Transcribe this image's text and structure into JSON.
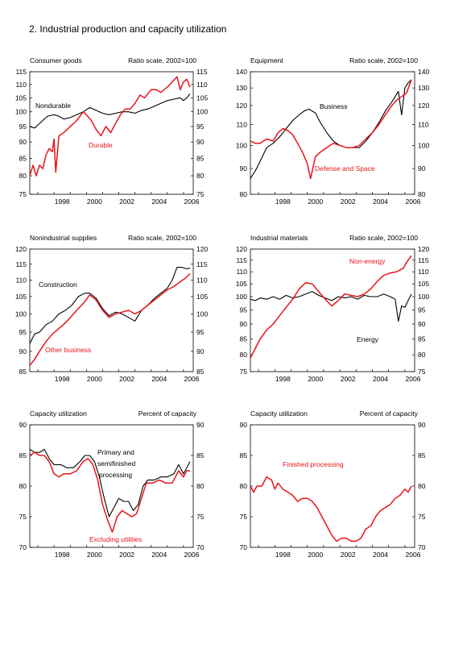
{
  "page": {
    "title": "2.  Industrial production and capacity utilization"
  },
  "colors": {
    "black": "#000000",
    "red": "#e8141b"
  },
  "chart_data": [
    {
      "type": "line",
      "title": "Consumer goods",
      "unit_label": "Ratio scale, 2002=100",
      "scale": "log",
      "ylim": [
        75,
        115
      ],
      "yticks": [
        "75",
        "80",
        "85",
        "90",
        "95",
        "100",
        "105",
        "110",
        "115"
      ],
      "xlim": [
        1996.5,
        2006.6
      ],
      "xticks": [
        "1998",
        "2000",
        "2002",
        "2004",
        "2006"
      ],
      "grid": false,
      "series": [
        {
          "name": "Nondurable",
          "color": "black",
          "x": [
            1996.5,
            1996.8,
            1997.0,
            1997.3,
            1997.6,
            1998.0,
            1998.3,
            1998.6,
            1999.0,
            1999.4,
            1999.8,
            2000.2,
            2000.6,
            2001.0,
            2001.4,
            2001.8,
            2002.2,
            2002.6,
            2003.0,
            2003.4,
            2003.8,
            2004.2,
            2004.6,
            2005.0,
            2005.4,
            2005.8,
            2006.0,
            2006.2,
            2006.4
          ],
          "y": [
            95,
            94.5,
            95.5,
            97,
            98.5,
            99,
            98.5,
            97.5,
            98,
            99,
            100,
            101.5,
            100.5,
            99.5,
            99,
            99.5,
            100,
            100,
            99.5,
            100.5,
            101,
            102,
            103,
            104,
            104.5,
            105,
            104,
            105,
            106.5
          ]
        },
        {
          "name": "Durable",
          "color": "red",
          "x": [
            1996.5,
            1996.7,
            1996.9,
            1997.1,
            1997.3,
            1997.5,
            1997.7,
            1997.9,
            1998.0,
            1998.1,
            1998.3,
            1998.6,
            1999.0,
            1999.4,
            1999.8,
            2000.0,
            2000.3,
            2000.6,
            2000.9,
            2001.2,
            2001.5,
            2001.8,
            2002.1,
            2002.4,
            2002.7,
            2003.0,
            2003.3,
            2003.6,
            2004.0,
            2004.3,
            2004.6,
            2005.0,
            2005.3,
            2005.6,
            2005.8,
            2006.0,
            2006.2,
            2006.4
          ],
          "y": [
            80,
            83,
            80,
            83,
            82,
            86,
            88,
            87,
            91,
            81,
            92,
            93,
            95,
            97,
            100,
            99,
            97,
            94,
            92,
            95,
            93,
            96,
            99,
            101,
            101,
            103,
            106,
            105,
            108,
            108,
            107,
            109,
            111,
            113,
            108,
            111,
            112,
            109
          ]
        }
      ],
      "annotations": [
        {
          "text": "Nondurable"
        },
        {
          "text": "Durable"
        }
      ]
    },
    {
      "type": "line",
      "title": "Equipment",
      "unit_label": "Ratio scale, 2002=100",
      "scale": "log",
      "ylim": [
        80,
        140
      ],
      "yticks": [
        "80",
        "90",
        "100",
        "110",
        "120",
        "130",
        "140"
      ],
      "xlim": [
        1996.5,
        2006.6
      ],
      "xticks": [
        "1998",
        "2000",
        "2002",
        "2004",
        "2006"
      ],
      "grid": false,
      "series": [
        {
          "name": "Business",
          "color": "black",
          "x": [
            1996.5,
            1996.8,
            1997.1,
            1997.5,
            1997.9,
            1998.3,
            1998.7,
            1999.1,
            1999.5,
            1999.8,
            2000.1,
            2000.5,
            2000.8,
            2001.2,
            2001.6,
            2002.0,
            2002.4,
            2002.8,
            2003.2,
            2003.6,
            2004.0,
            2004.4,
            2004.8,
            2005.2,
            2005.6,
            2005.8,
            2006.0,
            2006.2,
            2006.4
          ],
          "y": [
            86,
            89,
            93,
            99,
            101,
            104,
            108,
            112,
            115,
            117,
            118,
            116,
            111,
            106,
            102,
            100,
            99,
            99,
            99,
            102,
            106,
            111,
            117,
            122,
            128,
            115,
            130,
            133,
            135
          ]
        },
        {
          "name": "Defense and Space",
          "color": "red",
          "x": [
            1996.5,
            1996.8,
            1997.1,
            1997.5,
            1997.9,
            1998.2,
            1998.5,
            1998.8,
            1999.1,
            1999.4,
            1999.7,
            2000.0,
            2000.2,
            2000.5,
            2000.8,
            2001.2,
            2001.6,
            2002.0,
            2002.4,
            2002.8,
            2003.2,
            2003.6,
            2004.0,
            2004.4,
            2004.8,
            2005.2,
            2005.5,
            2005.8,
            2006.1,
            2006.4
          ],
          "y": [
            102,
            101,
            101,
            103,
            102,
            106,
            108,
            107,
            105,
            101,
            97,
            92,
            86,
            95,
            97,
            99,
            101,
            100,
            99,
            99,
            100,
            103,
            106,
            110,
            115,
            120,
            123,
            125,
            127,
            135
          ]
        }
      ],
      "annotations": [
        {
          "text": "Business"
        },
        {
          "text": "Defense and Space"
        }
      ]
    },
    {
      "type": "line",
      "title": "Nonindustrial supplies",
      "unit_label": "Ratio scale, 2002=100",
      "scale": "log",
      "ylim": [
        85,
        120
      ],
      "yticks": [
        "85",
        "90",
        "95",
        "100",
        "105",
        "110",
        "115",
        "120"
      ],
      "xlim": [
        1996.5,
        2006.6
      ],
      "xticks": [
        "1998",
        "2000",
        "2002",
        "2004",
        "2006"
      ],
      "grid": false,
      "series": [
        {
          "name": "Construction",
          "color": "black",
          "x": [
            1996.5,
            1996.8,
            1997.1,
            1997.5,
            1997.9,
            1998.3,
            1998.7,
            1999.1,
            1999.5,
            1999.9,
            2000.2,
            2000.6,
            2001.0,
            2001.4,
            2001.8,
            2002.2,
            2002.6,
            2003.0,
            2003.4,
            2003.8,
            2004.2,
            2004.6,
            2005.0,
            2005.3,
            2005.6,
            2005.9,
            2006.2,
            2006.4
          ],
          "y": [
            92,
            94.5,
            95,
            97,
            98,
            100,
            101,
            102.5,
            105,
            106,
            106,
            104.5,
            101.5,
            99.5,
            100.5,
            100,
            99,
            98,
            101,
            102.5,
            104.5,
            106,
            107.5,
            110,
            114,
            114,
            113.5,
            113.8
          ]
        },
        {
          "name": "Other business",
          "color": "red",
          "x": [
            1996.5,
            1996.8,
            1997.1,
            1997.5,
            1997.9,
            1998.3,
            1998.7,
            1999.1,
            1999.5,
            1999.9,
            2000.2,
            2000.6,
            2001.0,
            2001.4,
            2001.8,
            2002.2,
            2002.6,
            2003.0,
            2003.4,
            2003.8,
            2004.2,
            2004.6,
            2005.0,
            2005.4,
            2005.8,
            2006.1,
            2006.4
          ],
          "y": [
            86.5,
            88,
            90,
            92.5,
            94.5,
            96,
            97.5,
            99.5,
            101.5,
            103.5,
            105.5,
            104,
            101,
            99,
            100,
            100.5,
            101,
            100,
            101,
            102.5,
            104,
            105.5,
            107,
            108,
            109.5,
            110.5,
            112
          ]
        }
      ],
      "annotations": [
        {
          "text": "Construction"
        },
        {
          "text": "Other business"
        }
      ]
    },
    {
      "type": "line",
      "title": "Industrial materials",
      "unit_label": "Ratio scale, 2002=100",
      "scale": "log",
      "ylim": [
        75,
        120
      ],
      "yticks": [
        "75",
        "80",
        "85",
        "90",
        "95",
        "100",
        "105",
        "110",
        "115",
        "120"
      ],
      "xlim": [
        1996.5,
        2006.6
      ],
      "xticks": [
        "1998",
        "2000",
        "2002",
        "2004",
        "2006"
      ],
      "grid": false,
      "series": [
        {
          "name": "Energy",
          "color": "black",
          "x": [
            1996.5,
            1996.8,
            1997.1,
            1997.5,
            1997.9,
            1998.3,
            1998.7,
            1999.1,
            1999.5,
            1999.9,
            2000.3,
            2000.7,
            2001.1,
            2001.5,
            2001.9,
            2002.3,
            2002.7,
            2003.1,
            2003.5,
            2003.9,
            2004.3,
            2004.7,
            2005.1,
            2005.4,
            2005.6,
            2005.8,
            2006.0,
            2006.2,
            2006.4
          ],
          "y": [
            99,
            98.5,
            99.5,
            99,
            100,
            99,
            100.5,
            99.5,
            100,
            101,
            102,
            100.5,
            99.5,
            98.5,
            100,
            99.5,
            100,
            99,
            100.5,
            100,
            100,
            101,
            100,
            99,
            91,
            96.5,
            96,
            98.5,
            101
          ]
        },
        {
          "name": "Non-energy",
          "color": "red",
          "x": [
            1996.5,
            1996.8,
            1997.1,
            1997.5,
            1997.9,
            1998.3,
            1998.7,
            1999.1,
            1999.5,
            1999.9,
            2000.3,
            2000.7,
            2001.1,
            2001.5,
            2001.9,
            2002.3,
            2002.7,
            2003.1,
            2003.5,
            2003.9,
            2004.3,
            2004.7,
            2005.1,
            2005.5,
            2005.9,
            2006.1,
            2006.4
          ],
          "y": [
            79,
            82,
            85,
            88,
            90,
            93,
            96,
            99,
            103,
            105.5,
            105,
            102,
            99,
            96.5,
            98.5,
            101,
            100.5,
            100,
            101,
            103,
            106,
            108.5,
            109.5,
            110,
            111.5,
            114,
            117
          ]
        }
      ],
      "annotations": [
        {
          "text": "Non-energy"
        },
        {
          "text": "Energy"
        }
      ]
    },
    {
      "type": "line",
      "title": "Capacity utilization",
      "unit_label": "Percent of capacity",
      "scale": "linear",
      "ylim": [
        70,
        90
      ],
      "yticks": [
        "70",
        "75",
        "80",
        "85",
        "90"
      ],
      "xlim": [
        1996.5,
        2006.6
      ],
      "xticks": [
        "1998",
        "2000",
        "2002",
        "2004",
        "2006"
      ],
      "grid": false,
      "series": [
        {
          "name": "Primary and semifinished processing",
          "color": "black",
          "x": [
            1996.5,
            1996.8,
            1997.1,
            1997.4,
            1997.7,
            1998.0,
            1998.4,
            1998.8,
            1999.2,
            1999.6,
            1999.9,
            2000.2,
            2000.5,
            2000.8,
            2001.1,
            2001.4,
            2001.7,
            2002.0,
            2002.3,
            2002.6,
            2002.9,
            2003.2,
            2003.5,
            2003.8,
            2004.2,
            2004.6,
            2005.0,
            2005.4,
            2005.7,
            2006.0,
            2006.2,
            2006.4
          ],
          "y": [
            86,
            85.5,
            85.5,
            86,
            84.5,
            83.5,
            83.5,
            83,
            83,
            84,
            85,
            85,
            84,
            81.5,
            78,
            75,
            76.5,
            78,
            77.5,
            77.5,
            76,
            77,
            80,
            81,
            81,
            81.5,
            81.5,
            82,
            83.5,
            82,
            83,
            84
          ]
        },
        {
          "name": "Excluding utilities",
          "color": "red",
          "x": [
            1996.5,
            1996.8,
            1997.1,
            1997.4,
            1997.7,
            1998.0,
            1998.3,
            1998.6,
            1999.0,
            1999.4,
            1999.8,
            2000.1,
            2000.4,
            2000.7,
            2001.0,
            2001.3,
            2001.6,
            2001.9,
            2002.2,
            2002.5,
            2002.8,
            2003.1,
            2003.4,
            2003.7,
            2004.1,
            2004.5,
            2004.9,
            2005.3,
            2005.7,
            2006.0,
            2006.2,
            2006.4
          ],
          "y": [
            85,
            85.5,
            85,
            85,
            84,
            82,
            81.5,
            82,
            82,
            82.5,
            84,
            84.5,
            83.5,
            81,
            77,
            74.5,
            72.5,
            75,
            76,
            75.5,
            75,
            75.5,
            78,
            80.5,
            80.5,
            81,
            80.5,
            80.5,
            82.5,
            81.5,
            82.5,
            82.5
          ]
        }
      ],
      "annotations": [
        {
          "text": "Primary and"
        },
        {
          "text": "semifinished"
        },
        {
          "text": "processing"
        },
        {
          "text": "Excluding utilities"
        }
      ]
    },
    {
      "type": "line",
      "title": "Capacity utilization",
      "unit_label": "Percent of capacity",
      "scale": "linear",
      "ylim": [
        70,
        90
      ],
      "yticks": [
        "70",
        "75",
        "80",
        "85",
        "90"
      ],
      "xlim": [
        1996.5,
        2006.6
      ],
      "xticks": [
        "1998",
        "2000",
        "2002",
        "2004",
        "2006"
      ],
      "grid": false,
      "series": [
        {
          "name": "Finished processing",
          "color": "red",
          "x": [
            1996.5,
            1996.7,
            1996.9,
            1997.2,
            1997.5,
            1997.8,
            1998.0,
            1998.2,
            1998.5,
            1998.8,
            1999.1,
            1999.4,
            1999.7,
            2000.0,
            2000.3,
            2000.6,
            2000.9,
            2001.2,
            2001.5,
            2001.8,
            2002.1,
            2002.4,
            2002.7,
            2003.0,
            2003.3,
            2003.6,
            2003.9,
            2004.2,
            2004.5,
            2004.8,
            2005.1,
            2005.4,
            2005.7,
            2006.0,
            2006.2,
            2006.4
          ],
          "y": [
            80,
            79,
            80,
            80,
            81.5,
            81,
            79.5,
            80.5,
            79.5,
            79,
            78.5,
            77.5,
            78,
            78,
            77.5,
            76.5,
            75,
            73.5,
            72,
            71,
            71.5,
            71.5,
            71,
            71,
            71.5,
            73,
            73.5,
            75,
            76,
            76.5,
            77,
            78,
            78.5,
            79.5,
            79,
            80
          ]
        }
      ],
      "annotations": [
        {
          "text": "Finished processing"
        }
      ]
    }
  ]
}
